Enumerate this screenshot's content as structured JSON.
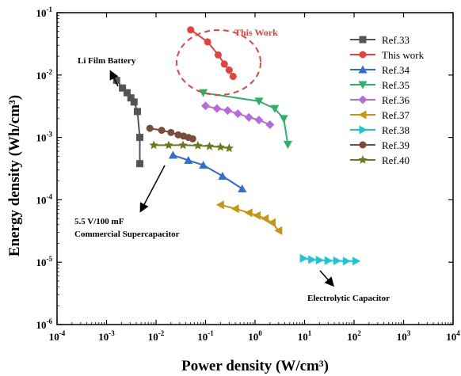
{
  "chart_data": {
    "type": "scatter",
    "xlabel": "Power density (W/cm³)",
    "ylabel": "Energy density (Wh/cm³)",
    "xscale": "log",
    "yscale": "log",
    "xlim": [
      0.0001,
      10000
    ],
    "ylim": [
      1e-06,
      0.1
    ],
    "x_ticks": [
      {
        "value": 0.0001,
        "base": "10",
        "exp": "-4"
      },
      {
        "value": 0.001,
        "base": "10",
        "exp": "-3"
      },
      {
        "value": 0.01,
        "base": "10",
        "exp": "-2"
      },
      {
        "value": 0.1,
        "base": "10",
        "exp": "-1"
      },
      {
        "value": 1,
        "base": "10",
        "exp": "0"
      },
      {
        "value": 10,
        "base": "10",
        "exp": "1"
      },
      {
        "value": 100,
        "base": "10",
        "exp": "2"
      },
      {
        "value": 1000,
        "base": "10",
        "exp": "3"
      },
      {
        "value": 10000,
        "base": "10",
        "exp": "4"
      }
    ],
    "y_ticks": [
      {
        "value": 1e-06,
        "base": "10",
        "exp": "-6"
      },
      {
        "value": 1e-05,
        "base": "10",
        "exp": "-5"
      },
      {
        "value": 0.0001,
        "base": "10",
        "exp": "-4"
      },
      {
        "value": 0.001,
        "base": "10",
        "exp": "-3"
      },
      {
        "value": 0.01,
        "base": "10",
        "exp": "-2"
      },
      {
        "value": 0.1,
        "base": "10",
        "exp": "-1"
      }
    ],
    "legend_position": "top-right",
    "grid": false,
    "series": [
      {
        "name": "Ref.33",
        "color": "#555555",
        "marker": "square",
        "points": [
          [
            0.0016,
            0.0082
          ],
          [
            0.0021,
            0.0062
          ],
          [
            0.0026,
            0.0052
          ],
          [
            0.0031,
            0.0043
          ],
          [
            0.0036,
            0.0037
          ],
          [
            0.0042,
            0.0026
          ],
          [
            0.0047,
            0.001
          ],
          [
            0.0047,
            0.00038
          ]
        ]
      },
      {
        "name": "This work",
        "color": "#e8413c",
        "marker": "circle",
        "points": [
          [
            0.05,
            0.053
          ],
          [
            0.11,
            0.034
          ],
          [
            0.18,
            0.021
          ],
          [
            0.24,
            0.015
          ],
          [
            0.3,
            0.012
          ],
          [
            0.36,
            0.0095
          ]
        ]
      },
      {
        "name": "Ref.34",
        "color": "#2f6fd0",
        "marker": "triangle-up",
        "points": [
          [
            0.022,
            0.00052
          ],
          [
            0.045,
            0.00043
          ],
          [
            0.09,
            0.00036
          ],
          [
            0.22,
            0.00024
          ],
          [
            0.55,
            0.00015
          ]
        ]
      },
      {
        "name": "Ref.35",
        "color": "#2cb06a",
        "marker": "triangle-down",
        "points": [
          [
            0.09,
            0.0052
          ],
          [
            1.2,
            0.0038
          ],
          [
            2.5,
            0.0029
          ],
          [
            3.8,
            0.002
          ],
          [
            4.6,
            0.00077
          ]
        ]
      },
      {
        "name": "Ref.36",
        "color": "#b76adf",
        "marker": "diamond",
        "points": [
          [
            0.1,
            0.0032
          ],
          [
            0.17,
            0.0029
          ],
          [
            0.28,
            0.0027
          ],
          [
            0.45,
            0.0024
          ],
          [
            0.75,
            0.0021
          ],
          [
            1.2,
            0.0019
          ],
          [
            2.0,
            0.0016
          ]
        ]
      },
      {
        "name": "Ref.37",
        "color": "#c8950e",
        "marker": "triangle-left",
        "points": [
          [
            0.2,
            8.3e-05
          ],
          [
            0.4,
            7.2e-05
          ],
          [
            0.75,
            6.2e-05
          ],
          [
            1.1,
            5.6e-05
          ],
          [
            1.6,
            5e-05
          ],
          [
            2.2,
            4.3e-05
          ],
          [
            3.0,
            3.2e-05
          ]
        ]
      },
      {
        "name": "Ref.38",
        "color": "#15c8d4",
        "marker": "triangle-right",
        "points": [
          [
            9.5,
            1.15e-05
          ],
          [
            14,
            1.1e-05
          ],
          [
            20,
            1.08e-05
          ],
          [
            30,
            1.06e-05
          ],
          [
            45,
            1.05e-05
          ],
          [
            70,
            1.04e-05
          ],
          [
            110,
            1.04e-05
          ]
        ]
      },
      {
        "name": "Ref.39",
        "color": "#7a4a3a",
        "marker": "circle",
        "points": [
          [
            0.0075,
            0.0014
          ],
          [
            0.013,
            0.0013
          ],
          [
            0.02,
            0.0012
          ],
          [
            0.028,
            0.0011
          ],
          [
            0.036,
            0.00105
          ],
          [
            0.045,
            0.001
          ],
          [
            0.055,
            0.00095
          ]
        ]
      },
      {
        "name": "Ref.40",
        "color": "#6b7a1a",
        "marker": "star",
        "points": [
          [
            0.009,
            0.00075
          ],
          [
            0.018,
            0.00075
          ],
          [
            0.035,
            0.00075
          ],
          [
            0.07,
            0.00074
          ],
          [
            0.12,
            0.00072
          ],
          [
            0.2,
            0.0007
          ],
          [
            0.3,
            0.00067
          ]
        ]
      }
    ],
    "annotations": {
      "this_work": "This Work",
      "li_film": "Li Film Battery",
      "commercial_sc_line1": "5.5 V/100 mF",
      "commercial_sc_line2": "Commercial Supercapacitor",
      "electrolytic": "Electrolytic Capacitor"
    }
  }
}
